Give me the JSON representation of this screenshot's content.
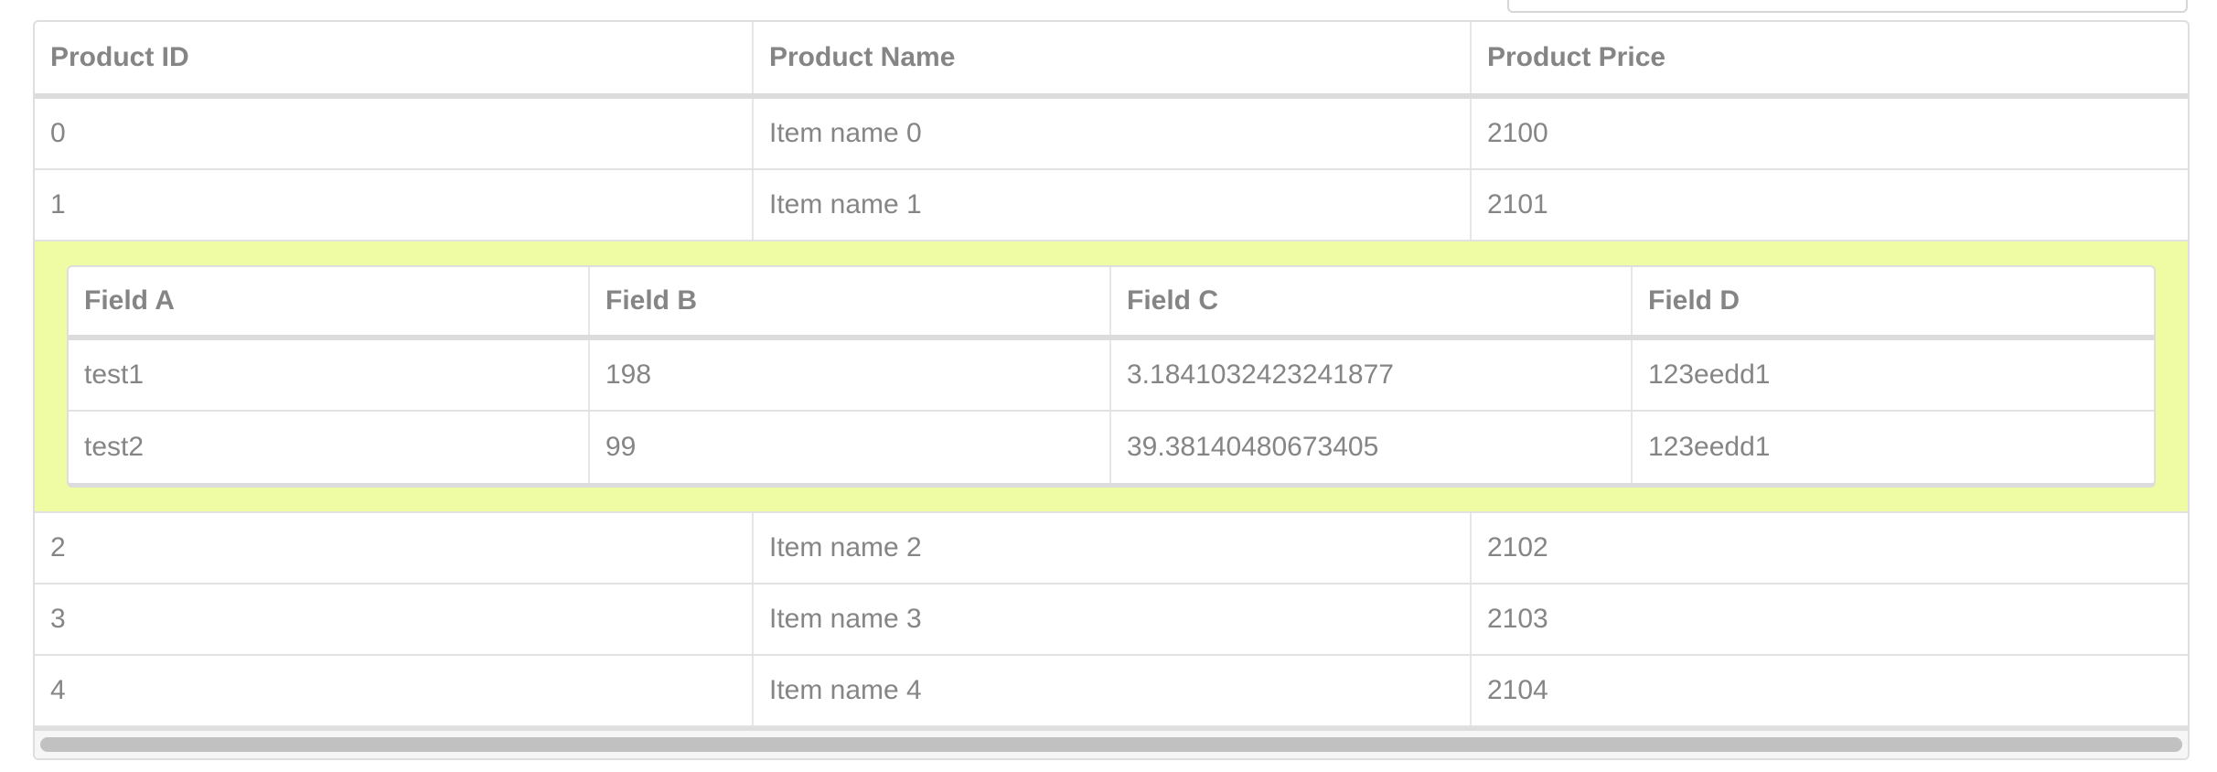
{
  "main_table": {
    "headers": [
      "Product ID",
      "Product Name",
      "Product Price"
    ],
    "rows_before": [
      [
        "0",
        "Item name 0",
        "2100"
      ],
      [
        "1",
        "Item name 1",
        "2101"
      ]
    ],
    "rows_after": [
      [
        "2",
        "Item name 2",
        "2102"
      ],
      [
        "3",
        "Item name 3",
        "2103"
      ],
      [
        "4",
        "Item name 4",
        "2104"
      ]
    ]
  },
  "expanded": {
    "highlight_color": "#effca3",
    "headers": [
      "Field A",
      "Field B",
      "Field C",
      "Field D"
    ],
    "rows": [
      [
        "test1",
        "198",
        "3.1841032423241877",
        "123eedd1"
      ],
      [
        "test2",
        "99",
        "39.38140480673405",
        "123eedd1"
      ]
    ]
  }
}
